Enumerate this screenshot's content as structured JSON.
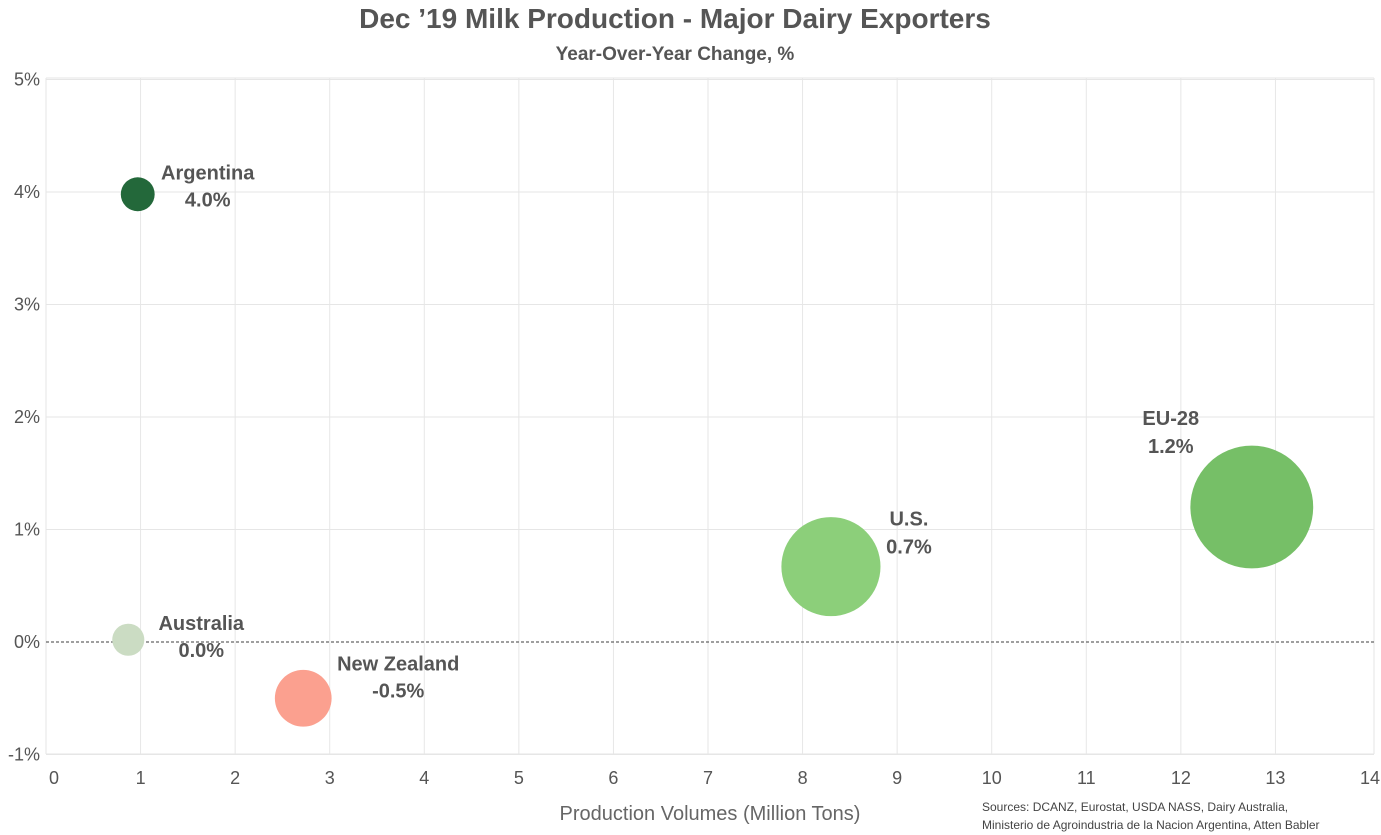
{
  "chart_data": {
    "type": "scatter",
    "title": "Dec ’19 Milk Production - Major Dairy Exporters",
    "subtitle": "Year-Over-Year Change, %",
    "xlabel": "Production Volumes (Million Tons)",
    "ylabel": "",
    "xlim": [
      0,
      14
    ],
    "ylim": [
      -1,
      5
    ],
    "x_ticks": [
      "0",
      "1",
      "2",
      "3",
      "4",
      "5",
      "6",
      "7",
      "8",
      "9",
      "10",
      "11",
      "12",
      "13",
      "14"
    ],
    "y_ticks": [
      "-1%",
      "0%",
      "1%",
      "2%",
      "3%",
      "4%",
      "5%"
    ],
    "grid": true,
    "zero_line": "dashed",
    "points": [
      {
        "name": "Argentina",
        "x": 0.97,
        "y": 3.98,
        "label": "4.0%",
        "color": "#23683a"
      },
      {
        "name": "EU-28",
        "x": 12.75,
        "y": 1.2,
        "label": "1.2%",
        "color": "#76bf67"
      },
      {
        "name": "U.S.",
        "x": 8.3,
        "y": 0.67,
        "label": "0.7%",
        "color": "#8ccf7a"
      },
      {
        "name": "Australia",
        "x": 0.87,
        "y": 0.02,
        "label": "0.0%",
        "color": "#cbdcc3"
      },
      {
        "name": "New Zealand",
        "x": 2.72,
        "y": -0.5,
        "label": "-0.5%",
        "color": "#fba08f"
      }
    ],
    "source_lines": [
      "Sources: DCANZ, Eurostat, USDA NASS, Dairy Australia,",
      "Ministerio de Agroindustria de la Nacion Argentina, Atten Babler"
    ]
  }
}
